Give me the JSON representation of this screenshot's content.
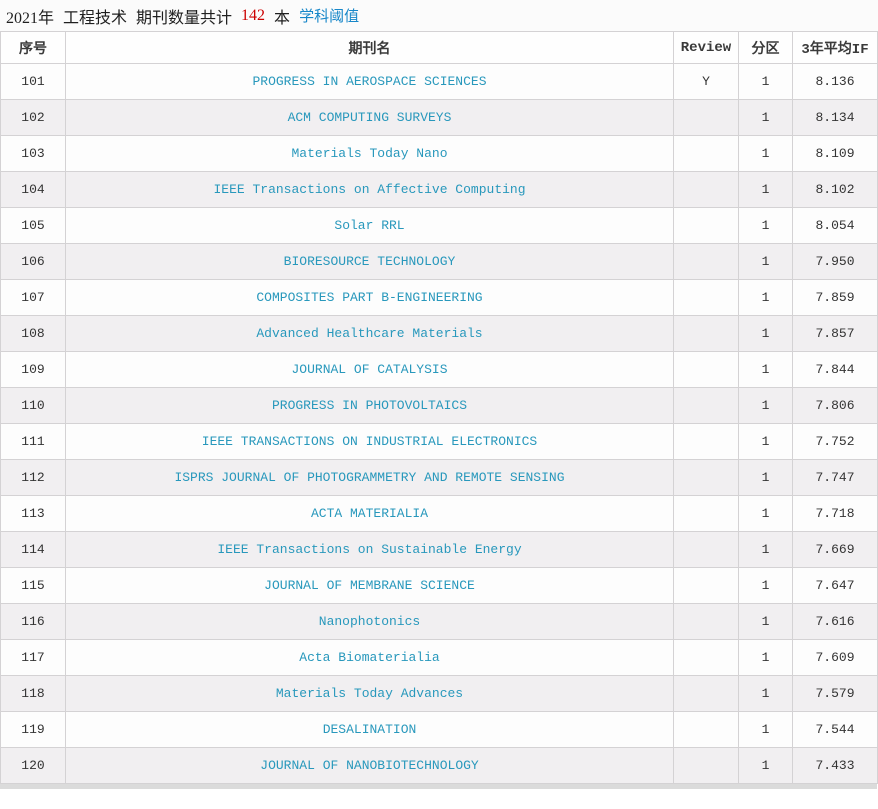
{
  "title": {
    "year": "2021年",
    "category": "工程技术",
    "count_label": "期刊数量共计",
    "count": "142",
    "unit": "本",
    "threshold_link": "学科阈值"
  },
  "table": {
    "headers": [
      "序号",
      "期刊名",
      "Review",
      "分区",
      "3年平均IF"
    ],
    "rows": [
      {
        "index": "101",
        "journal": "PROGRESS IN AEROSPACE SCIENCES",
        "review": "Y",
        "partition": "1",
        "if3": "8.136"
      },
      {
        "index": "102",
        "journal": "ACM COMPUTING SURVEYS",
        "review": "",
        "partition": "1",
        "if3": "8.134"
      },
      {
        "index": "103",
        "journal": "Materials Today Nano",
        "review": "",
        "partition": "1",
        "if3": "8.109"
      },
      {
        "index": "104",
        "journal": "IEEE Transactions on Affective Computing",
        "review": "",
        "partition": "1",
        "if3": "8.102"
      },
      {
        "index": "105",
        "journal": "Solar RRL",
        "review": "",
        "partition": "1",
        "if3": "8.054"
      },
      {
        "index": "106",
        "journal": "BIORESOURCE TECHNOLOGY",
        "review": "",
        "partition": "1",
        "if3": "7.950"
      },
      {
        "index": "107",
        "journal": "COMPOSITES PART B-ENGINEERING",
        "review": "",
        "partition": "1",
        "if3": "7.859"
      },
      {
        "index": "108",
        "journal": "Advanced Healthcare Materials",
        "review": "",
        "partition": "1",
        "if3": "7.857"
      },
      {
        "index": "109",
        "journal": "JOURNAL OF CATALYSIS",
        "review": "",
        "partition": "1",
        "if3": "7.844"
      },
      {
        "index": "110",
        "journal": "PROGRESS IN PHOTOVOLTAICS",
        "review": "",
        "partition": "1",
        "if3": "7.806"
      },
      {
        "index": "111",
        "journal": "IEEE TRANSACTIONS ON INDUSTRIAL ELECTRONICS",
        "review": "",
        "partition": "1",
        "if3": "7.752"
      },
      {
        "index": "112",
        "journal": "ISPRS JOURNAL OF PHOTOGRAMMETRY AND REMOTE SENSING",
        "review": "",
        "partition": "1",
        "if3": "7.747"
      },
      {
        "index": "113",
        "journal": "ACTA MATERIALIA",
        "review": "",
        "partition": "1",
        "if3": "7.718"
      },
      {
        "index": "114",
        "journal": "IEEE Transactions on Sustainable Energy",
        "review": "",
        "partition": "1",
        "if3": "7.669"
      },
      {
        "index": "115",
        "journal": "JOURNAL OF MEMBRANE SCIENCE",
        "review": "",
        "partition": "1",
        "if3": "7.647"
      },
      {
        "index": "116",
        "journal": "Nanophotonics",
        "review": "",
        "partition": "1",
        "if3": "7.616"
      },
      {
        "index": "117",
        "journal": "Acta Biomaterialia",
        "review": "",
        "partition": "1",
        "if3": "7.609"
      },
      {
        "index": "118",
        "journal": "Materials Today Advances",
        "review": "",
        "partition": "1",
        "if3": "7.579"
      },
      {
        "index": "119",
        "journal": "DESALINATION",
        "review": "",
        "partition": "1",
        "if3": "7.544"
      },
      {
        "index": "120",
        "journal": "JOURNAL OF NANOBIOTECHNOLOGY",
        "review": "",
        "partition": "1",
        "if3": "7.433"
      }
    ]
  },
  "colors": {
    "link_teal": "#2898BC",
    "link_blue": "#1787C9",
    "count_red": "#CC0000",
    "row_alt_bg": "#F1EFF1",
    "border_gray": "#D4D2D4",
    "strip_gray": "#DBDBDB"
  }
}
